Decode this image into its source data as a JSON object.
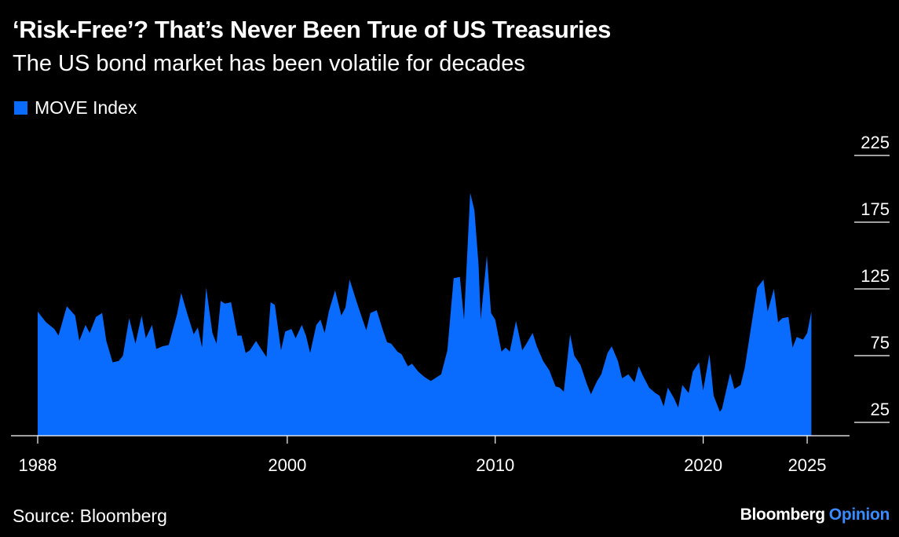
{
  "header": {
    "title": "‘Risk-Free’? That’s Never Been True of US Treasuries",
    "subtitle": "The US bond market has been volatile for decades"
  },
  "legend": {
    "label": "MOVE Index"
  },
  "footer": {
    "source": "Source: Bloomberg",
    "brand_main": "Bloomberg",
    "brand_sub": "Opinion"
  },
  "colors": {
    "series": "#0a6cff",
    "background": "#000000",
    "text": "#ffffff",
    "brand_accent": "#3a8bff"
  },
  "chart_data": {
    "type": "area",
    "title": "‘Risk-Free’? That’s Never Been True of US Treasuries",
    "subtitle": "The US bond market has been volatile for decades",
    "xlabel": "",
    "ylabel": "",
    "xlim": [
      1988.0,
      2025.3
    ],
    "ylim": [
      15,
      225
    ],
    "yticks": [
      25,
      75,
      125,
      175,
      225
    ],
    "xticks": [
      "1988",
      "2000",
      "2010",
      "2020",
      "2025"
    ],
    "grid": false,
    "legend_position": "top-left",
    "series": [
      {
        "name": "MOVE Index",
        "points": [
          [
            1988.0,
            108
          ],
          [
            1988.4,
            100
          ],
          [
            1988.8,
            95
          ],
          [
            1989.0,
            90
          ],
          [
            1989.4,
            112
          ],
          [
            1989.8,
            105
          ],
          [
            1990.0,
            86
          ],
          [
            1990.3,
            98
          ],
          [
            1990.5,
            92
          ],
          [
            1990.8,
            104
          ],
          [
            1991.1,
            107
          ],
          [
            1991.3,
            86
          ],
          [
            1991.6,
            70
          ],
          [
            1991.9,
            71
          ],
          [
            1992.1,
            75
          ],
          [
            1992.4,
            103
          ],
          [
            1992.7,
            84
          ],
          [
            1993.0,
            105
          ],
          [
            1993.2,
            88
          ],
          [
            1993.5,
            98
          ],
          [
            1993.7,
            80
          ],
          [
            1994.0,
            82
          ],
          [
            1994.3,
            83
          ],
          [
            1994.7,
            106
          ],
          [
            1994.9,
            122
          ],
          [
            1995.2,
            106
          ],
          [
            1995.5,
            91
          ],
          [
            1995.7,
            96
          ],
          [
            1995.9,
            81
          ],
          [
            1996.1,
            126
          ],
          [
            1996.4,
            92
          ],
          [
            1996.6,
            84
          ],
          [
            1996.8,
            116
          ],
          [
            1997.0,
            114
          ],
          [
            1997.3,
            115
          ],
          [
            1997.6,
            90
          ],
          [
            1997.8,
            90
          ],
          [
            1998.0,
            77
          ],
          [
            1998.2,
            79
          ],
          [
            1998.5,
            86
          ],
          [
            1998.7,
            81
          ],
          [
            1999.0,
            74
          ],
          [
            1999.2,
            115
          ],
          [
            1999.4,
            113
          ],
          [
            1999.7,
            79
          ],
          [
            1999.9,
            93
          ],
          [
            2000.2,
            95
          ],
          [
            2000.4,
            88
          ],
          [
            2000.7,
            98
          ],
          [
            2000.9,
            90
          ],
          [
            2001.1,
            77
          ],
          [
            2001.4,
            98
          ],
          [
            2001.6,
            102
          ],
          [
            2001.8,
            92
          ],
          [
            2002.0,
            108
          ],
          [
            2002.3,
            124
          ],
          [
            2002.6,
            105
          ],
          [
            2002.8,
            111
          ],
          [
            2003.0,
            132
          ],
          [
            2003.3,
            117
          ],
          [
            2003.6,
            103
          ],
          [
            2003.8,
            94
          ],
          [
            2004.0,
            107
          ],
          [
            2004.3,
            109
          ],
          [
            2004.6,
            94
          ],
          [
            2004.8,
            85
          ],
          [
            2005.0,
            84
          ],
          [
            2005.3,
            78
          ],
          [
            2005.5,
            76
          ],
          [
            2005.8,
            67
          ],
          [
            2006.0,
            69
          ],
          [
            2006.3,
            63
          ],
          [
            2006.6,
            59
          ],
          [
            2006.9,
            56
          ],
          [
            2007.0,
            57
          ],
          [
            2007.4,
            61
          ],
          [
            2007.7,
            79
          ],
          [
            2008.0,
            133
          ],
          [
            2008.3,
            134
          ],
          [
            2008.5,
            102
          ],
          [
            2008.8,
            197
          ],
          [
            2009.0,
            184
          ],
          [
            2009.2,
            143
          ],
          [
            2009.3,
            102
          ],
          [
            2009.6,
            150
          ],
          [
            2009.8,
            107
          ],
          [
            2010.0,
            102
          ],
          [
            2010.3,
            78
          ],
          [
            2010.5,
            81
          ],
          [
            2010.7,
            78
          ],
          [
            2011.0,
            101
          ],
          [
            2011.3,
            79
          ],
          [
            2011.5,
            84
          ],
          [
            2011.8,
            92
          ],
          [
            2012.0,
            82
          ],
          [
            2012.3,
            71
          ],
          [
            2012.6,
            64
          ],
          [
            2012.9,
            52
          ],
          [
            2013.1,
            51
          ],
          [
            2013.3,
            48
          ],
          [
            2013.6,
            91
          ],
          [
            2013.8,
            75
          ],
          [
            2014.1,
            68
          ],
          [
            2014.4,
            54
          ],
          [
            2014.6,
            46
          ],
          [
            2014.9,
            56
          ],
          [
            2015.1,
            61
          ],
          [
            2015.4,
            77
          ],
          [
            2015.6,
            82
          ],
          [
            2015.9,
            71
          ],
          [
            2016.1,
            58
          ],
          [
            2016.4,
            61
          ],
          [
            2016.7,
            55
          ],
          [
            2016.9,
            67
          ],
          [
            2017.1,
            60
          ],
          [
            2017.4,
            51
          ],
          [
            2017.7,
            47
          ],
          [
            2017.9,
            45
          ],
          [
            2018.1,
            37
          ],
          [
            2018.3,
            51
          ],
          [
            2018.6,
            43
          ],
          [
            2018.8,
            36
          ],
          [
            2019.0,
            53
          ],
          [
            2019.3,
            47
          ],
          [
            2019.5,
            63
          ],
          [
            2019.8,
            70
          ],
          [
            2020.0,
            49
          ],
          [
            2020.3,
            76
          ],
          [
            2020.5,
            45
          ],
          [
            2020.8,
            33
          ],
          [
            2020.9,
            35
          ],
          [
            2021.3,
            62
          ],
          [
            2021.5,
            50
          ],
          [
            2021.8,
            53
          ],
          [
            2022.0,
            66
          ],
          [
            2022.3,
            96
          ],
          [
            2022.6,
            126
          ],
          [
            2022.9,
            132
          ],
          [
            2023.1,
            108
          ],
          [
            2023.4,
            125
          ],
          [
            2023.6,
            100
          ],
          [
            2023.8,
            103
          ],
          [
            2024.1,
            104
          ],
          [
            2024.3,
            81
          ],
          [
            2024.5,
            89
          ],
          [
            2024.8,
            87
          ],
          [
            2025.0,
            92
          ],
          [
            2025.2,
            108
          ]
        ]
      }
    ]
  }
}
